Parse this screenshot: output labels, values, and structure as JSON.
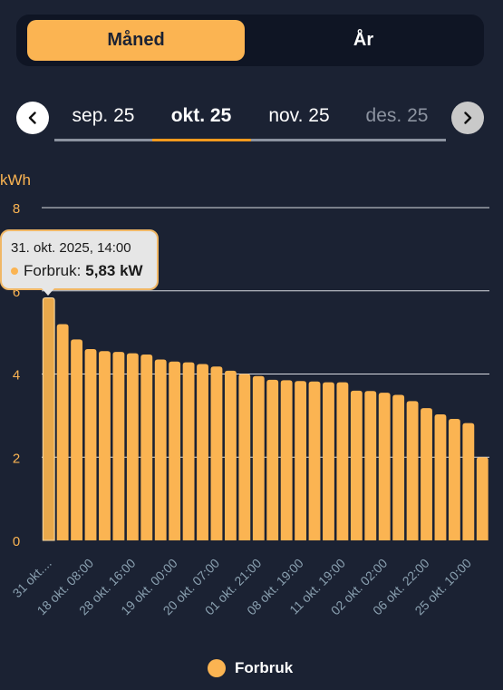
{
  "period_toggle": {
    "month_label": "Måned",
    "year_label": "År"
  },
  "months": [
    {
      "label": "sep. 25"
    },
    {
      "label": "okt. 25"
    },
    {
      "label": "nov. 25"
    },
    {
      "label": "des. 25"
    }
  ],
  "colors": {
    "bar": "#fbb452",
    "accent": "#f39a1e",
    "background": "#1b2233",
    "tick": "#fbb452",
    "xlabel": "#8aa0b0"
  },
  "icons": {
    "prev": "chevron-left-icon",
    "next": "chevron-right-icon"
  },
  "tooltip": {
    "date": "31. okt. 2025, 14:00",
    "series": "Forbruk:",
    "value": "5,83 kW"
  },
  "chart_data": {
    "type": "bar",
    "unit": "kWh",
    "ylim": [
      0,
      8
    ],
    "yticks": [
      "0",
      "2",
      "4",
      "6",
      "8"
    ],
    "grid": true,
    "legend_position": "bottom-center",
    "series": [
      {
        "name": "Forbruk",
        "values": [
          5.83,
          5.2,
          4.83,
          4.6,
          4.55,
          4.53,
          4.5,
          4.47,
          4.35,
          4.3,
          4.28,
          4.24,
          4.18,
          4.08,
          4.0,
          3.95,
          3.86,
          3.85,
          3.83,
          3.82,
          3.8,
          3.8,
          3.6,
          3.59,
          3.55,
          3.5,
          3.35,
          3.18,
          3.03,
          2.92,
          2.82,
          2.0
        ]
      }
    ],
    "xtick_labels": [
      "31 okt....",
      "18 okt. 08:00",
      "28 okt. 16:00",
      "19 okt. 00:00",
      "20 okt. 07:00",
      "01 okt. 21:00",
      "08 okt. 19:00",
      "11 okt. 19:00",
      "02 okt. 02:00",
      "06 okt. 22:00",
      "25 okt. 10:00"
    ],
    "xtick_bar_index": [
      0,
      3,
      6,
      9,
      12,
      15,
      18,
      21,
      24,
      27,
      30
    ],
    "highlight_index": 0
  },
  "legend": {
    "label": "Forbruk"
  }
}
